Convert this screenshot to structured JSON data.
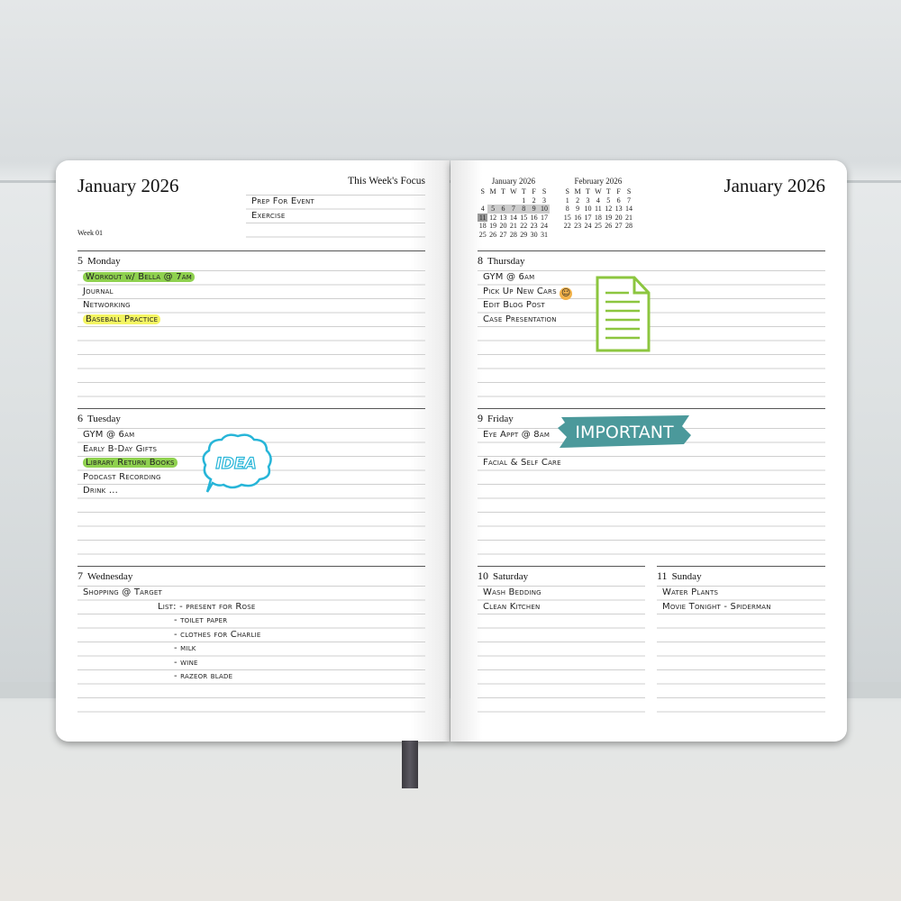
{
  "left_page": {
    "title": "January 2026",
    "focus_label": "This Week's Focus",
    "focus_items": [
      "Prep For Event",
      "Exercise"
    ],
    "week": "Week 01"
  },
  "right_page": {
    "title": "January 2026"
  },
  "calendars": [
    {
      "title": "January 2026",
      "headers": [
        "S",
        "M",
        "T",
        "W",
        "T",
        "F",
        "S"
      ],
      "weeks": [
        [
          "",
          "",
          "",
          "",
          "1",
          "2",
          "3"
        ],
        [
          "4",
          "5",
          "6",
          "7",
          "8",
          "9",
          "10"
        ],
        [
          "11",
          "12",
          "13",
          "14",
          "15",
          "16",
          "17"
        ],
        [
          "18",
          "19",
          "20",
          "21",
          "22",
          "23",
          "24"
        ],
        [
          "25",
          "26",
          "27",
          "28",
          "29",
          "30",
          "31"
        ]
      ],
      "highlight_week": [
        "5",
        "6",
        "7",
        "8",
        "9",
        "10"
      ],
      "current_day": "11"
    },
    {
      "title": "February 2026",
      "headers": [
        "S",
        "M",
        "T",
        "W",
        "T",
        "F",
        "S"
      ],
      "weeks": [
        [
          "1",
          "2",
          "3",
          "4",
          "5",
          "6",
          "7"
        ],
        [
          "8",
          "9",
          "10",
          "11",
          "12",
          "13",
          "14"
        ],
        [
          "15",
          "16",
          "17",
          "18",
          "19",
          "20",
          "21"
        ],
        [
          "22",
          "23",
          "24",
          "25",
          "26",
          "27",
          "28"
        ]
      ]
    }
  ],
  "days": {
    "monday": {
      "num": "5",
      "name": "Monday",
      "items": [
        "Workout w/ Bella @ 7am",
        "Journal",
        "Networking",
        "Baseball Practice"
      ]
    },
    "tuesday": {
      "num": "6",
      "name": "Tuesday",
      "items": [
        "GYM @ 6am",
        "Early B-Day Gifts",
        "Library Return Books",
        "Podcast Recording",
        "Drink ..."
      ]
    },
    "wednesday": {
      "num": "7",
      "name": "Wednesday",
      "items": [
        "Shopping @ Target",
        "List: - present for Rose",
        "- toilet paper",
        "- clothes for Charlie",
        "- milk",
        "- wine",
        "- razeor blade"
      ]
    },
    "thursday": {
      "num": "8",
      "name": "Thursday",
      "items": [
        "GYM @ 6am",
        "Pick Up New Cars",
        "Edit Blog Post",
        "Case Presentation"
      ]
    },
    "friday": {
      "num": "9",
      "name": "Friday",
      "items": [
        "Eye Appt @ 8am",
        "Facial & Self Care"
      ]
    },
    "saturday": {
      "num": "10",
      "name": "Saturday",
      "items": [
        "Wash Bedding",
        "Clean Kitchen"
      ]
    },
    "sunday": {
      "num": "11",
      "name": "Sunday",
      "items": [
        "Water Plants",
        "Movie Tonight - Spiderman"
      ]
    }
  },
  "stickers": {
    "idea": "IDEA",
    "important": "IMPORTANT",
    "smiley": "smiley-icon",
    "document": "document-icon"
  },
  "colors": {
    "green_highlight": "#8fd14f",
    "yellow_highlight": "#f4f562",
    "sticker_teal": "#4b999b",
    "idea_cyan": "#27b5d8",
    "doc_green": "#8cc63f"
  }
}
